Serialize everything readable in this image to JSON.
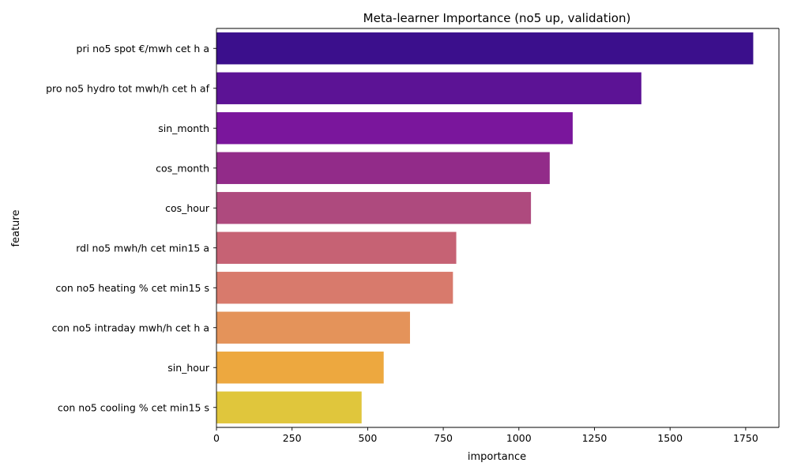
{
  "chart_data": {
    "type": "bar",
    "orientation": "horizontal",
    "title": "Meta-learner Importance (no5 up, validation)",
    "xlabel": "importance",
    "ylabel": "feature",
    "xlim": [
      0,
      1860
    ],
    "xticks": [
      0,
      250,
      500,
      750,
      1000,
      1250,
      1500,
      1750
    ],
    "grid": false,
    "categories": [
      "pri no5 spot €/mwh cet h a",
      "pro no5 hydro tot mwh/h cet h af",
      "sin_month",
      "cos_month",
      "cos_hour",
      "rdl no5 mwh/h cet min15 a",
      "con no5 heating % cet min15 s",
      "con no5 intraday mwh/h cet h a",
      "sin_hour",
      "con no5 cooling % cet min15 s"
    ],
    "values": [
      1775,
      1405,
      1178,
      1102,
      1040,
      793,
      782,
      640,
      553,
      480
    ],
    "colors": [
      "#3b0f8c",
      "#5c1395",
      "#7a169c",
      "#922b89",
      "#ae4a7e",
      "#c66274",
      "#d87a6c",
      "#e4935a",
      "#eda83f",
      "#e0c63c"
    ]
  }
}
